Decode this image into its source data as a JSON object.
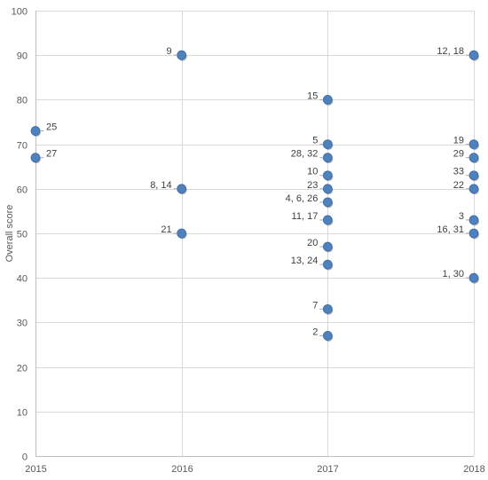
{
  "chart_data": {
    "type": "scatter",
    "title": "",
    "xlabel": "",
    "ylabel": "Overall score",
    "xlim": [
      2015,
      2018
    ],
    "ylim": [
      0,
      100
    ],
    "x_ticks": [
      2015,
      2016,
      2017,
      2018
    ],
    "x_tick_labels": [
      "2015",
      "2016",
      "2017",
      "2018"
    ],
    "y_ticks": [
      0,
      10,
      20,
      30,
      40,
      50,
      60,
      70,
      80,
      90,
      100
    ],
    "y_tick_labels": [
      "0",
      "10",
      "20",
      "30",
      "40",
      "50",
      "60",
      "70",
      "80",
      "90",
      "100"
    ],
    "grid": true,
    "legend": "none",
    "marker_color": "#4f81bd",
    "points": [
      {
        "x": 2015,
        "y": 73,
        "label": "25"
      },
      {
        "x": 2015,
        "y": 67,
        "label": "27"
      },
      {
        "x": 2016,
        "y": 90,
        "label": "9"
      },
      {
        "x": 2016,
        "y": 60,
        "label": "8, 14"
      },
      {
        "x": 2016,
        "y": 50,
        "label": "21"
      },
      {
        "x": 2017,
        "y": 80,
        "label": "15"
      },
      {
        "x": 2017,
        "y": 70,
        "label": "5"
      },
      {
        "x": 2017,
        "y": 67,
        "label": "28, 32"
      },
      {
        "x": 2017,
        "y": 63,
        "label": "10"
      },
      {
        "x": 2017,
        "y": 60,
        "label": "23"
      },
      {
        "x": 2017,
        "y": 57,
        "label": "4, 6, 26"
      },
      {
        "x": 2017,
        "y": 53,
        "label": "11, 17"
      },
      {
        "x": 2017,
        "y": 47,
        "label": "20"
      },
      {
        "x": 2017,
        "y": 43,
        "label": "13, 24"
      },
      {
        "x": 2017,
        "y": 33,
        "label": "7"
      },
      {
        "x": 2017,
        "y": 27,
        "label": "2"
      },
      {
        "x": 2018,
        "y": 90,
        "label": "12, 18"
      },
      {
        "x": 2018,
        "y": 70,
        "label": "19"
      },
      {
        "x": 2018,
        "y": 67,
        "label": "29"
      },
      {
        "x": 2018,
        "y": 63,
        "label": "33"
      },
      {
        "x": 2018,
        "y": 60,
        "label": "22"
      },
      {
        "x": 2018,
        "y": 53,
        "label": "3"
      },
      {
        "x": 2018,
        "y": 50,
        "label": "16, 31"
      },
      {
        "x": 2018,
        "y": 40,
        "label": "1, 30"
      }
    ]
  }
}
